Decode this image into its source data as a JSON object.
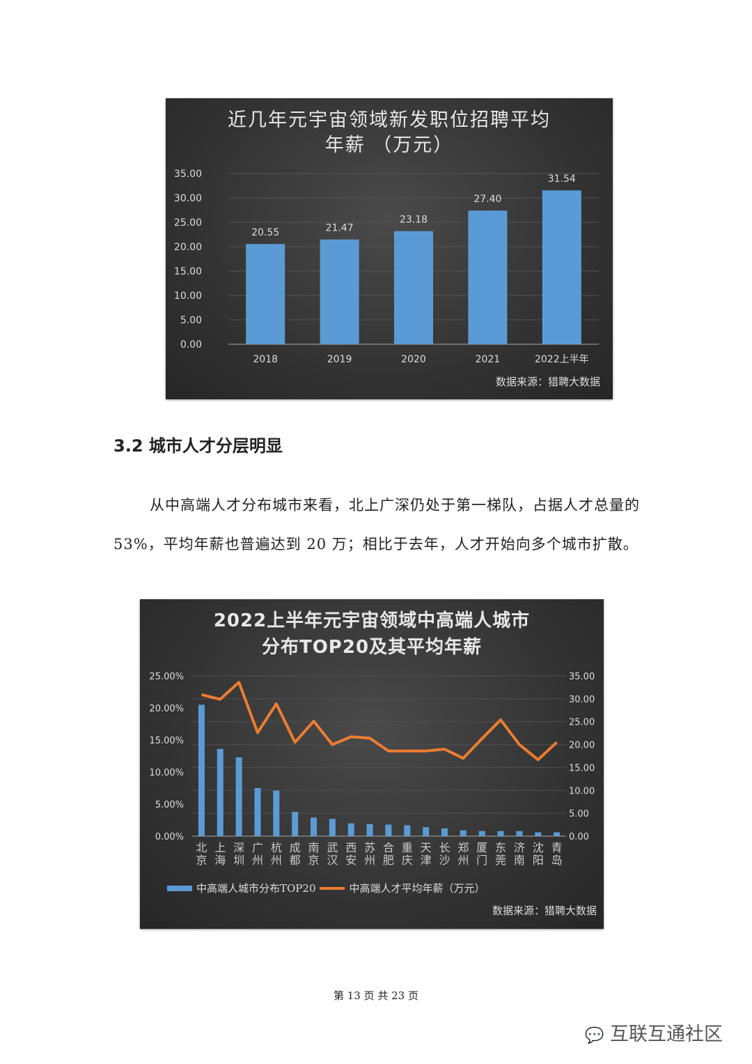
{
  "chart_data": [
    {
      "type": "bar",
      "title": "近几年元宇宙领域新发职位招聘平均年薪 （万元）",
      "title_lines": [
        "近几年元宇宙领域新发职位招聘平均",
        "年薪 （万元）"
      ],
      "categories": [
        "2018",
        "2019",
        "2020",
        "2021",
        "2022上半年"
      ],
      "values": [
        20.55,
        21.47,
        23.18,
        27.4,
        31.54
      ],
      "data_labels": [
        "20.55",
        "21.47",
        "23.18",
        "27.40",
        "31.54"
      ],
      "ylim": [
        0,
        35
      ],
      "yticks": [
        "0.00",
        "5.00",
        "10.00",
        "15.00",
        "20.00",
        "25.00",
        "30.00",
        "35.00"
      ],
      "grid": true,
      "bar_color": "#5b9bd5",
      "source": "数据来源：猎聘大数据"
    },
    {
      "type": "bar+line",
      "title": "2022上半年元宇宙领域中高端人城市分布TOP20及其平均年薪",
      "title_lines": [
        "2022上半年元宇宙领域中高端人城市",
        "分布TOP20及其平均年薪"
      ],
      "categories": [
        "北京",
        "上海",
        "深圳",
        "广州",
        "杭州",
        "成都",
        "南京",
        "武汉",
        "西安",
        "苏州",
        "合肥",
        "重庆",
        "天津",
        "长沙",
        "郑州",
        "厦门",
        "东莞",
        "济南",
        "沈阳",
        "青岛"
      ],
      "series": [
        {
          "name": "中高端人城市分布TOP20",
          "type": "bar",
          "axis": "left",
          "color": "#5b9bd5",
          "values": [
            20.5,
            13.6,
            12.3,
            7.5,
            7.1,
            3.8,
            2.9,
            2.7,
            2.0,
            1.9,
            1.8,
            1.7,
            1.4,
            1.2,
            0.9,
            0.8,
            0.8,
            0.8,
            0.6,
            0.6
          ]
        },
        {
          "name": "中高端人才平均年薪（万元）",
          "type": "line",
          "axis": "right",
          "color": "#ed7d31",
          "values": [
            30.9,
            29.9,
            33.6,
            22.6,
            28.9,
            20.5,
            25.1,
            20.0,
            21.7,
            21.4,
            18.6,
            18.6,
            18.6,
            19.0,
            17.0,
            21.3,
            25.4,
            20.0,
            16.7,
            20.5
          ]
        }
      ],
      "ylim_left": [
        0,
        25
      ],
      "yticks_left": [
        "0.00%",
        "5.00%",
        "10.00%",
        "15.00%",
        "20.00%",
        "25.00%"
      ],
      "ylim_right": [
        0,
        35
      ],
      "yticks_right": [
        "0.00",
        "5.00",
        "10.00",
        "15.00",
        "20.00",
        "25.00",
        "30.00",
        "35.00"
      ],
      "grid": true,
      "legend": "bottom",
      "source": "数据来源：猎聘大数据"
    }
  ],
  "section": {
    "heading": "3.2  城市人才分层明显",
    "paragraph": "从中高端人才分布城市来看，北上广深仍处于第一梯队，占据人才总量的 53%，平均年薪也普遍达到 20 万；相比于去年，人才开始向多个城市扩散。"
  },
  "footer": {
    "page_number": "第 13 页 共 23 页",
    "watermark": "互联互通社区",
    "watermark_icon": "wechat-icon"
  }
}
